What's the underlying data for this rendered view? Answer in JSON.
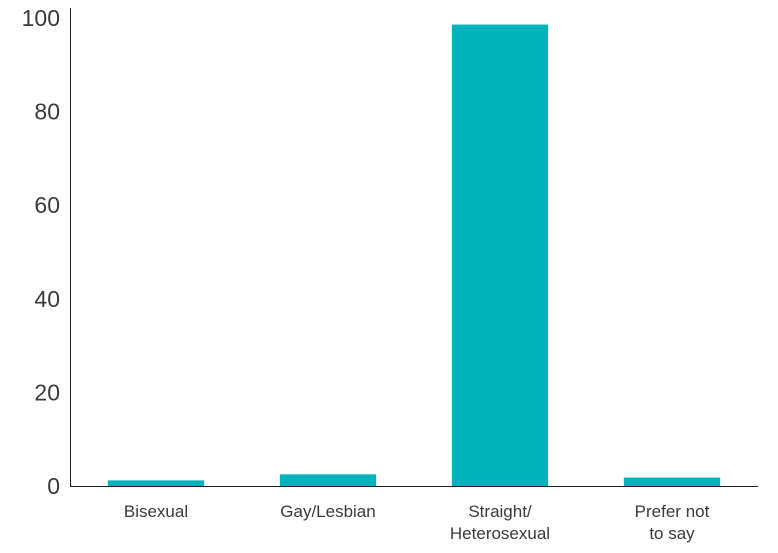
{
  "chart_data": {
    "type": "bar",
    "categories": [
      [
        "Bisexual"
      ],
      [
        "Gay/Lesbian"
      ],
      [
        "Straight/",
        "Heterosexual"
      ],
      [
        "Prefer not",
        "to say"
      ]
    ],
    "values": [
      1.2,
      2.5,
      98.6,
      1.8
    ],
    "yticks": [
      "0",
      "20",
      "40",
      "60",
      "80",
      "100"
    ],
    "ylim": [
      0,
      100
    ],
    "grid": false,
    "bar_color": "#00b2b9",
    "axis_color": "#222222",
    "label_color": "#3a3a3a"
  }
}
